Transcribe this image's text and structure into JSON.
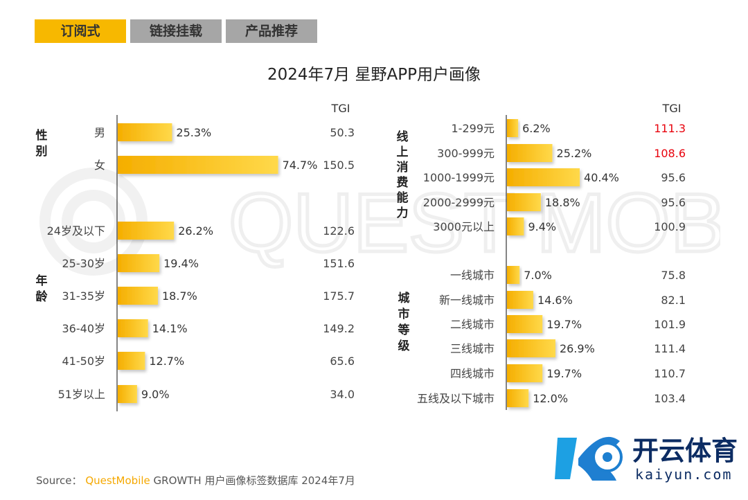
{
  "tabs": [
    {
      "label": "订阅式",
      "active": true
    },
    {
      "label": "链接挂载",
      "active": false
    },
    {
      "label": "产品推荐",
      "active": false
    }
  ],
  "title": "2024年7月 星野APP用户画像",
  "tgi_header": "TGI",
  "source": {
    "prefix": "Source：",
    "brand": "QuestMobile",
    "text": "GROWTH 用户画像标签数据库 2024年7月"
  },
  "watermark": "QUEST MOBILE",
  "logo": {
    "name": "开云体育",
    "url": "kaiyun.com"
  },
  "colors": {
    "bar": "#f7b500",
    "bar_light": "#ffd84d",
    "highlight_tgi": "#e8000b",
    "tab_active": "#f7b800",
    "tab_inactive": "#a6a6a6"
  },
  "chart_data": [
    {
      "type": "bar",
      "orientation": "horizontal",
      "group": "性别",
      "categories": [
        "男",
        "女"
      ],
      "values": [
        25.3,
        74.7
      ],
      "value_labels": [
        "25.3%",
        "74.7%"
      ],
      "tgi": [
        "50.3",
        "150.5"
      ]
    },
    {
      "type": "bar",
      "orientation": "horizontal",
      "group": "年龄",
      "categories": [
        "24岁及以下",
        "25-30岁",
        "31-35岁",
        "36-40岁",
        "41-50岁",
        "51岁以上"
      ],
      "values": [
        26.2,
        19.4,
        18.7,
        14.1,
        12.7,
        9.0
      ],
      "value_labels": [
        "26.2%",
        "19.4%",
        "18.7%",
        "14.1%",
        "12.7%",
        "9.0%"
      ],
      "tgi": [
        "122.6",
        "151.6",
        "175.7",
        "149.2",
        "65.6",
        "34.0"
      ]
    },
    {
      "type": "bar",
      "orientation": "horizontal",
      "group": "线上消费能力",
      "categories": [
        "1-299元",
        "300-999元",
        "1000-1999元",
        "2000-2999元",
        "3000元以上"
      ],
      "values": [
        6.2,
        25.2,
        40.4,
        18.8,
        9.4
      ],
      "value_labels": [
        "6.2%",
        "25.2%",
        "40.4%",
        "18.8%",
        "9.4%"
      ],
      "tgi": [
        "111.3",
        "108.6",
        "95.6",
        "95.6",
        "100.9"
      ],
      "tgi_highlight": [
        true,
        true,
        false,
        false,
        false
      ]
    },
    {
      "type": "bar",
      "orientation": "horizontal",
      "group": "城市等级",
      "categories": [
        "一线城市",
        "新一线城市",
        "二线城市",
        "三线城市",
        "四线城市",
        "五线及以下城市"
      ],
      "values": [
        7.0,
        14.6,
        19.7,
        26.9,
        19.7,
        12.0
      ],
      "value_labels": [
        "7.0%",
        "14.6%",
        "19.7%",
        "26.9%",
        "19.7%",
        "12.0%"
      ],
      "tgi": [
        "75.8",
        "82.1",
        "101.9",
        "111.4",
        "110.7",
        "103.4"
      ]
    }
  ]
}
